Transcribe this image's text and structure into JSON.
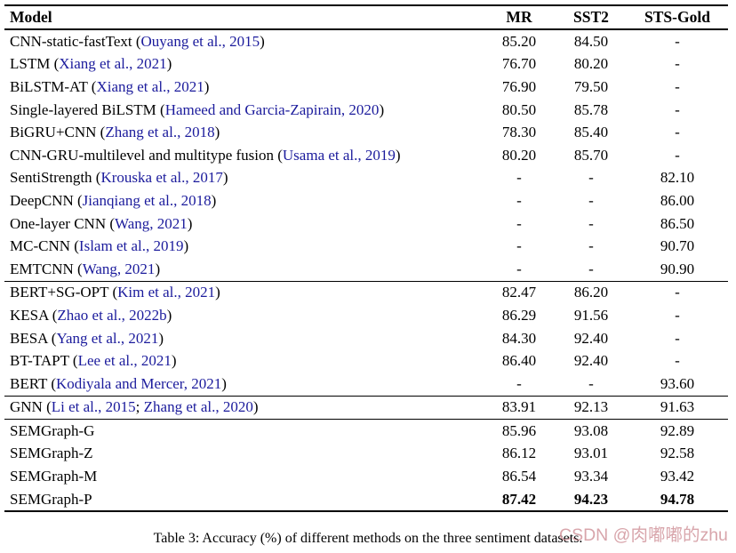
{
  "page": {
    "caption": "Table 3: Accuracy (%) of different methods on the three sentiment datasets.",
    "watermark": "CSDN @肉嘟嘟的zhu"
  },
  "colors": {
    "citation_blue": "#1b1b9c",
    "text_black": "#000000",
    "watermark_pink": "#ce8e96"
  },
  "table": {
    "headers": [
      "Model",
      "MR",
      "SST2",
      "STS-Gold"
    ],
    "groups": [
      {
        "rows": [
          {
            "model": [
              {
                "text": "CNN-static-fastText (",
                "cite": false
              },
              {
                "text": "Ouyang et al., 2015",
                "cite": true
              },
              {
                "text": ")",
                "cite": false
              }
            ],
            "mr": "85.20",
            "sst2": "84.50",
            "sts": "-"
          },
          {
            "model": [
              {
                "text": "LSTM (",
                "cite": false
              },
              {
                "text": "Xiang et al., 2021",
                "cite": true
              },
              {
                "text": ")",
                "cite": false
              }
            ],
            "mr": "76.70",
            "sst2": "80.20",
            "sts": "-"
          },
          {
            "model": [
              {
                "text": "BiLSTM-AT (",
                "cite": false
              },
              {
                "text": "Xiang et al., 2021",
                "cite": true
              },
              {
                "text": ")",
                "cite": false
              }
            ],
            "mr": "76.90",
            "sst2": "79.50",
            "sts": "-"
          },
          {
            "model": [
              {
                "text": "Single-layered BiLSTM (",
                "cite": false
              },
              {
                "text": "Hameed and Garcia-Zapirain, 2020",
                "cite": true
              },
              {
                "text": ")",
                "cite": false
              }
            ],
            "mr": "80.50",
            "sst2": "85.78",
            "sts": "-"
          },
          {
            "model": [
              {
                "text": "BiGRU+CNN (",
                "cite": false
              },
              {
                "text": "Zhang et al., 2018",
                "cite": true
              },
              {
                "text": ")",
                "cite": false
              }
            ],
            "mr": "78.30",
            "sst2": "85.40",
            "sts": "-"
          },
          {
            "model": [
              {
                "text": "CNN-GRU-multilevel and multitype fusion (",
                "cite": false
              },
              {
                "text": "Usama et al., 2019",
                "cite": true
              },
              {
                "text": ")",
                "cite": false
              }
            ],
            "mr": "80.20",
            "sst2": "85.70",
            "sts": "-"
          },
          {
            "model": [
              {
                "text": "SentiStrength (",
                "cite": false
              },
              {
                "text": "Krouska et al., 2017",
                "cite": true
              },
              {
                "text": ")",
                "cite": false
              }
            ],
            "mr": "-",
            "sst2": "-",
            "sts": "82.10"
          },
          {
            "model": [
              {
                "text": "DeepCNN (",
                "cite": false
              },
              {
                "text": "Jianqiang et al., 2018",
                "cite": true
              },
              {
                "text": ")",
                "cite": false
              }
            ],
            "mr": "-",
            "sst2": "-",
            "sts": "86.00"
          },
          {
            "model": [
              {
                "text": "One-layer CNN (",
                "cite": false
              },
              {
                "text": "Wang, 2021",
                "cite": true
              },
              {
                "text": ")",
                "cite": false
              }
            ],
            "mr": "-",
            "sst2": "-",
            "sts": "86.50"
          },
          {
            "model": [
              {
                "text": "MC-CNN (",
                "cite": false
              },
              {
                "text": "Islam et al., 2019",
                "cite": true
              },
              {
                "text": ")",
                "cite": false
              }
            ],
            "mr": "-",
            "sst2": "-",
            "sts": "90.70"
          },
          {
            "model": [
              {
                "text": "EMTCNN (",
                "cite": false
              },
              {
                "text": "Wang, 2021",
                "cite": true
              },
              {
                "text": ")",
                "cite": false
              }
            ],
            "mr": "-",
            "sst2": "-",
            "sts": "90.90"
          }
        ]
      },
      {
        "rows": [
          {
            "model": [
              {
                "text": "BERT+SG-OPT (",
                "cite": false
              },
              {
                "text": "Kim et al., 2021",
                "cite": true
              },
              {
                "text": ")",
                "cite": false
              }
            ],
            "mr": "82.47",
            "sst2": "86.20",
            "sts": "-"
          },
          {
            "model": [
              {
                "text": "KESA (",
                "cite": false
              },
              {
                "text": "Zhao et al., 2022b",
                "cite": true
              },
              {
                "text": ")",
                "cite": false
              }
            ],
            "mr": "86.29",
            "sst2": "91.56",
            "sts": "-"
          },
          {
            "model": [
              {
                "text": "BESA (",
                "cite": false
              },
              {
                "text": "Yang et al., 2021",
                "cite": true
              },
              {
                "text": ")",
                "cite": false
              }
            ],
            "mr": "84.30",
            "sst2": "92.40",
            "sts": "-"
          },
          {
            "model": [
              {
                "text": "BT-TAPT (",
                "cite": false
              },
              {
                "text": "Lee et al., 2021",
                "cite": true
              },
              {
                "text": ")",
                "cite": false
              }
            ],
            "mr": "86.40",
            "sst2": "92.40",
            "sts": "-"
          },
          {
            "model": [
              {
                "text": "BERT (",
                "cite": false
              },
              {
                "text": "Kodiyala and Mercer, 2021",
                "cite": true
              },
              {
                "text": ")",
                "cite": false
              }
            ],
            "mr": "-",
            "sst2": "-",
            "sts": "93.60"
          }
        ]
      },
      {
        "rows": [
          {
            "model": [
              {
                "text": "GNN (",
                "cite": false
              },
              {
                "text": "Li et al., 2015",
                "cite": true
              },
              {
                "text": "; ",
                "cite": false
              },
              {
                "text": "Zhang et al., 2020",
                "cite": true
              },
              {
                "text": ")",
                "cite": false
              }
            ],
            "mr": "83.91",
            "sst2": "92.13",
            "sts": "91.63"
          }
        ]
      },
      {
        "rows": [
          {
            "model": [
              {
                "text": "SEMGraph-G",
                "cite": false
              }
            ],
            "mr": "85.96",
            "sst2": "93.08",
            "sts": "92.89"
          },
          {
            "model": [
              {
                "text": "SEMGraph-Z",
                "cite": false
              }
            ],
            "mr": "86.12",
            "sst2": "93.01",
            "sts": "92.58"
          },
          {
            "model": [
              {
                "text": "SEMGraph-M",
                "cite": false
              }
            ],
            "mr": "86.54",
            "sst2": "93.34",
            "sts": "93.42"
          },
          {
            "model": [
              {
                "text": "SEMGraph-P",
                "cite": false
              }
            ],
            "mr": "87.42",
            "sst2": "94.23",
            "sts": "94.78",
            "bold": true
          }
        ]
      }
    ]
  }
}
